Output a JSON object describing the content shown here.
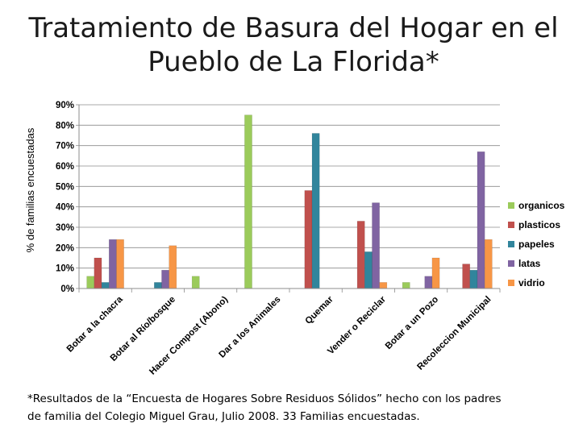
{
  "title_line1": "Tratamiento de Basura del Hogar en el",
  "title_line2": "Pueblo de La Florida*",
  "footnote_line1": "*Resultados de la “Encuesta de Hogares Sobre Residuos Sólidos” hecho con los padres",
  "footnote_line2": "de familia del Colegio Miguel Grau, Julio 2008.  33 Familias encuestadas.",
  "chart_data": {
    "type": "bar",
    "ylabel": "% de familias encuestadas",
    "xlabel": "",
    "ylim": [
      0,
      90
    ],
    "yticks": [
      "0%",
      "10%",
      "20%",
      "30%",
      "40%",
      "50%",
      "60%",
      "70%",
      "80%",
      "90%"
    ],
    "legend_position": "right",
    "grid": true,
    "categories": [
      "Botar a la chacra",
      "Botar al Río/bosque",
      "Hacer Compost (Abono)",
      "Dar a los Animales",
      "Quemar",
      "Vender o Reciclar",
      "Botar a un Pozo",
      "Recoleccion Municipal"
    ],
    "series": [
      {
        "name": "organicos",
        "color": "#9BCB5B",
        "values": [
          6,
          0,
          6,
          85,
          0,
          0,
          3,
          0
        ]
      },
      {
        "name": "plasticos",
        "color": "#C0504D",
        "values": [
          15,
          0,
          0,
          0,
          48,
          33,
          0,
          12
        ]
      },
      {
        "name": "papeles",
        "color": "#31859C",
        "values": [
          3,
          3,
          0,
          0,
          76,
          18,
          0,
          9
        ]
      },
      {
        "name": "latas",
        "color": "#8064A2",
        "values": [
          24,
          9,
          0,
          0,
          0,
          42,
          6,
          67
        ]
      },
      {
        "name": "vidrio",
        "color": "#F79646",
        "values": [
          24,
          21,
          0,
          0,
          0,
          3,
          15,
          24
        ]
      }
    ]
  }
}
